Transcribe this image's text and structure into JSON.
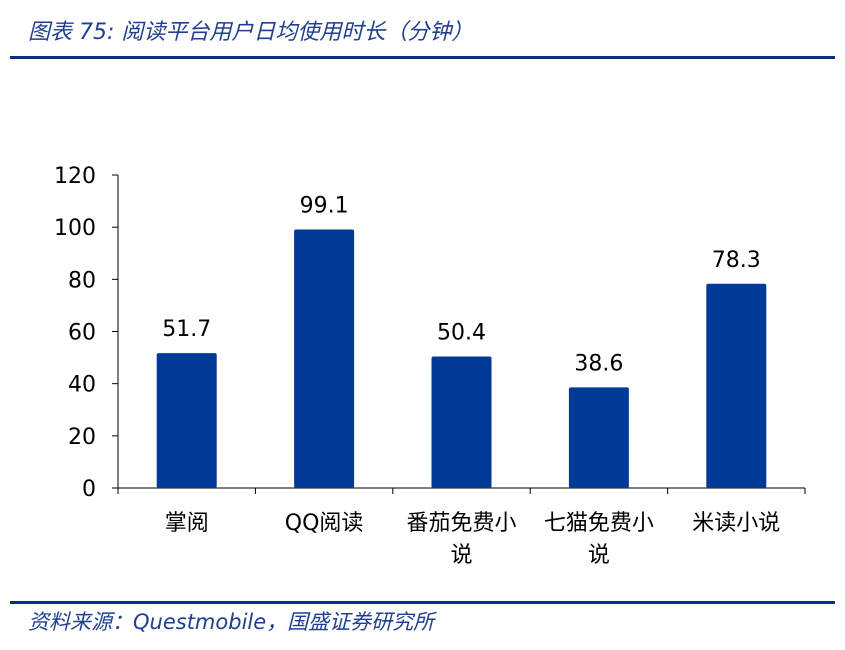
{
  "header": {
    "title": "图表 75:  阅读平台用户日均使用时长（分钟）"
  },
  "footer": {
    "source": "资料来源：Questmobile，国盛证券研究所"
  },
  "colors": {
    "bar": "#003a96",
    "rule": "#0b2f7f",
    "title_text": "#1f3f8f"
  },
  "chart_data": {
    "type": "bar",
    "title": "",
    "xlabel": "",
    "ylabel": "",
    "categories": [
      "掌阅",
      "QQ阅读",
      "番茄免费小说",
      "七猫免费小说",
      "米读小说"
    ],
    "category_label_lines": [
      [
        "掌阅"
      ],
      [
        "QQ阅读"
      ],
      [
        "番茄免费小",
        "说"
      ],
      [
        "七猫免费小",
        "说"
      ],
      [
        "米读小说"
      ]
    ],
    "values": [
      51.7,
      99.1,
      50.4,
      38.6,
      78.3
    ],
    "value_labels": [
      "51.7",
      "99.1",
      "50.4",
      "38.6",
      "78.3"
    ],
    "ylim": [
      0,
      120
    ],
    "yticks": [
      "0",
      "20",
      "40",
      "60",
      "80",
      "100",
      "120"
    ],
    "grid": false,
    "legend": "none"
  }
}
